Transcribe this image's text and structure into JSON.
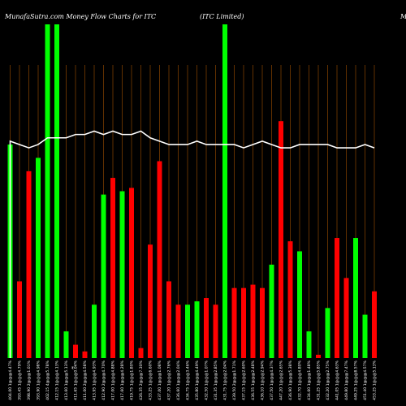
{
  "header": {
    "title_left": "MunafaSutra.com Money Flow Charts for ITC",
    "title_mid": "(ITC Limited)",
    "title_right": "M"
  },
  "colors": {
    "background": "#000000",
    "up": "#00ff00",
    "down": "#ff0000",
    "line": "#ffffff",
    "grid": "#8b4500"
  },
  "chart_data": {
    "type": "bar",
    "title": "",
    "xlabel": "",
    "ylabel": "",
    "ylim": [
      0,
      100
    ],
    "categories": [
      "404.00 1@@@4.47%",
      "393.45 1@@@4.79%",
      "398.90 2@@@1.01%",
      "393.90 1@@@4.98%",
      "402.15 4@@@5.78%",
      "412.15 1@@@4.13%",
      "413.60 1@@@5.13%",
      "411.65 1@@@0.04%",
      "411.00 2@@@4.58%",
      "413.95 1@@@4.93%",
      "412.90 2@@@4.70%",
      "417.00 1@@@4.88%",
      "417.60 1@@@4.28%",
      "419.75 1@@@1.80%",
      "426.35 2@@@7.30%",
      "433.25 1@@@6.60%",
      "437.00 1@@@1.08%",
      "437.20 1@@@2.76%",
      "436.60 1@@@2.04%",
      "434.75 1@@@3.46%",
      "435.80 1@@@4.49%",
      "432.50 1@@@1.07%",
      "431.35 1@@@2.85%",
      "431.75 1@@@2.04%",
      "439.50 2@@@1.71%",
      "437.15 1@@@2.60%",
      "436.55 1@@@2.48%",
      "436.10 1@@@2.94%",
      "437.50 1@@@4.37%",
      "447.20 1@@@2.65%",
      "436.90 1@@@5.38%",
      "432.70 1@@@4.80%",
      "434.60 1@@@1.48%",
      "431.25 1@@@5.85%",
      "432.20 1@@@2.75%",
      "441.05 1@@@4.63%",
      "449.80 1@@@7.47%",
      "449.25 1@@@8.57%",
      "451.40 1@@@4.57%",
      "453.25 1@@@5.13%"
    ],
    "series": [
      {
        "values": [
          64,
          23,
          56,
          60,
          100,
          100,
          8,
          4,
          2,
          16,
          49,
          54,
          50,
          51,
          3,
          34,
          59,
          23,
          16,
          16,
          17,
          18,
          16,
          100,
          21,
          21,
          22,
          21,
          28,
          71,
          35,
          32,
          8,
          1,
          15,
          36,
          24,
          36,
          13,
          20
        ],
        "directions": [
          "up",
          "down",
          "down",
          "up",
          "up",
          "up",
          "up",
          "down",
          "down",
          "up",
          "up",
          "down",
          "up",
          "down",
          "down",
          "down",
          "down",
          "down",
          "down",
          "up",
          "up",
          "down",
          "down",
          "up",
          "down",
          "down",
          "down",
          "down",
          "up",
          "down",
          "down",
          "up",
          "up",
          "down",
          "up",
          "down",
          "down",
          "up",
          "up",
          "down"
        ]
      },
      {
        "values": [
          65,
          64,
          63,
          64,
          66,
          66,
          66,
          67,
          67,
          68,
          67,
          68,
          67,
          67,
          68,
          66,
          65,
          64,
          64,
          64,
          65,
          64,
          64,
          64,
          64,
          63,
          64,
          65,
          64,
          63,
          63,
          64,
          64,
          64,
          64,
          63,
          63,
          63,
          64,
          63
        ]
      }
    ],
    "extra_label": "₹"
  }
}
